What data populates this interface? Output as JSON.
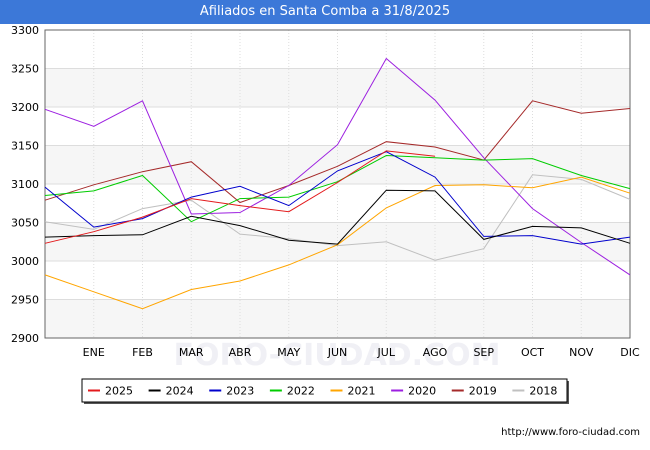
{
  "chart_data": {
    "type": "line",
    "title": "Afiliados en Santa Comba a 31/8/2025",
    "xlabel": "",
    "ylabel": "",
    "categories": [
      "",
      "ENE",
      "FEB",
      "MAR",
      "ABR",
      "MAY",
      "JUN",
      "JUL",
      "AGO",
      "SEP",
      "OCT",
      "NOV",
      "DIC"
    ],
    "ylim": [
      2900,
      3300
    ],
    "yticks": [
      2900,
      2950,
      3000,
      3050,
      3100,
      3150,
      3200,
      3250,
      3300
    ],
    "grid": true,
    "legend_position": "bottom",
    "series": [
      {
        "name": "2025",
        "color": "#e31a1c",
        "values": [
          3023,
          3038,
          3057,
          3081,
          3072,
          3064,
          3102,
          3143,
          3136,
          null,
          null,
          null,
          null
        ]
      },
      {
        "name": "2024",
        "color": "#000000",
        "values": [
          3031,
          3033,
          3034,
          3058,
          3046,
          3027,
          3022,
          3092,
          3091,
          3028,
          3045,
          3043,
          3023
        ]
      },
      {
        "name": "2023",
        "color": "#0000cc",
        "values": [
          3096,
          3044,
          3055,
          3083,
          3097,
          3072,
          3117,
          3142,
          3109,
          3032,
          3033,
          3022,
          3031
        ]
      },
      {
        "name": "2022",
        "color": "#00cc00",
        "values": [
          3085,
          3091,
          3111,
          3051,
          3081,
          3083,
          3103,
          3137,
          3134,
          3131,
          3133,
          3111,
          3094
        ]
      },
      {
        "name": "2021",
        "color": "#ffa500",
        "values": [
          2982,
          2960,
          2938,
          2963,
          2974,
          2995,
          3021,
          3069,
          3098,
          3099,
          3095,
          3109,
          3088
        ]
      },
      {
        "name": "2020",
        "color": "#9c1fe0",
        "values": [
          3197,
          3175,
          3208,
          3061,
          3063,
          3098,
          3151,
          3263,
          3209,
          3134,
          3068,
          3024,
          2982
        ]
      },
      {
        "name": "2019",
        "color": "#a52a2a",
        "values": [
          3079,
          3099,
          3116,
          3129,
          3076,
          3098,
          3123,
          3155,
          3148,
          3131,
          3208,
          3192,
          3198
        ]
      },
      {
        "name": "2018",
        "color": "#c0c0c0",
        "values": [
          3051,
          3041,
          3068,
          3079,
          3035,
          3029,
          3020,
          3025,
          3001,
          3016,
          3112,
          3106,
          3080
        ]
      }
    ]
  },
  "footer": {
    "url": "http://www.foro-ciudad.com"
  },
  "watermark": "FORO-CIUDAD.COM"
}
